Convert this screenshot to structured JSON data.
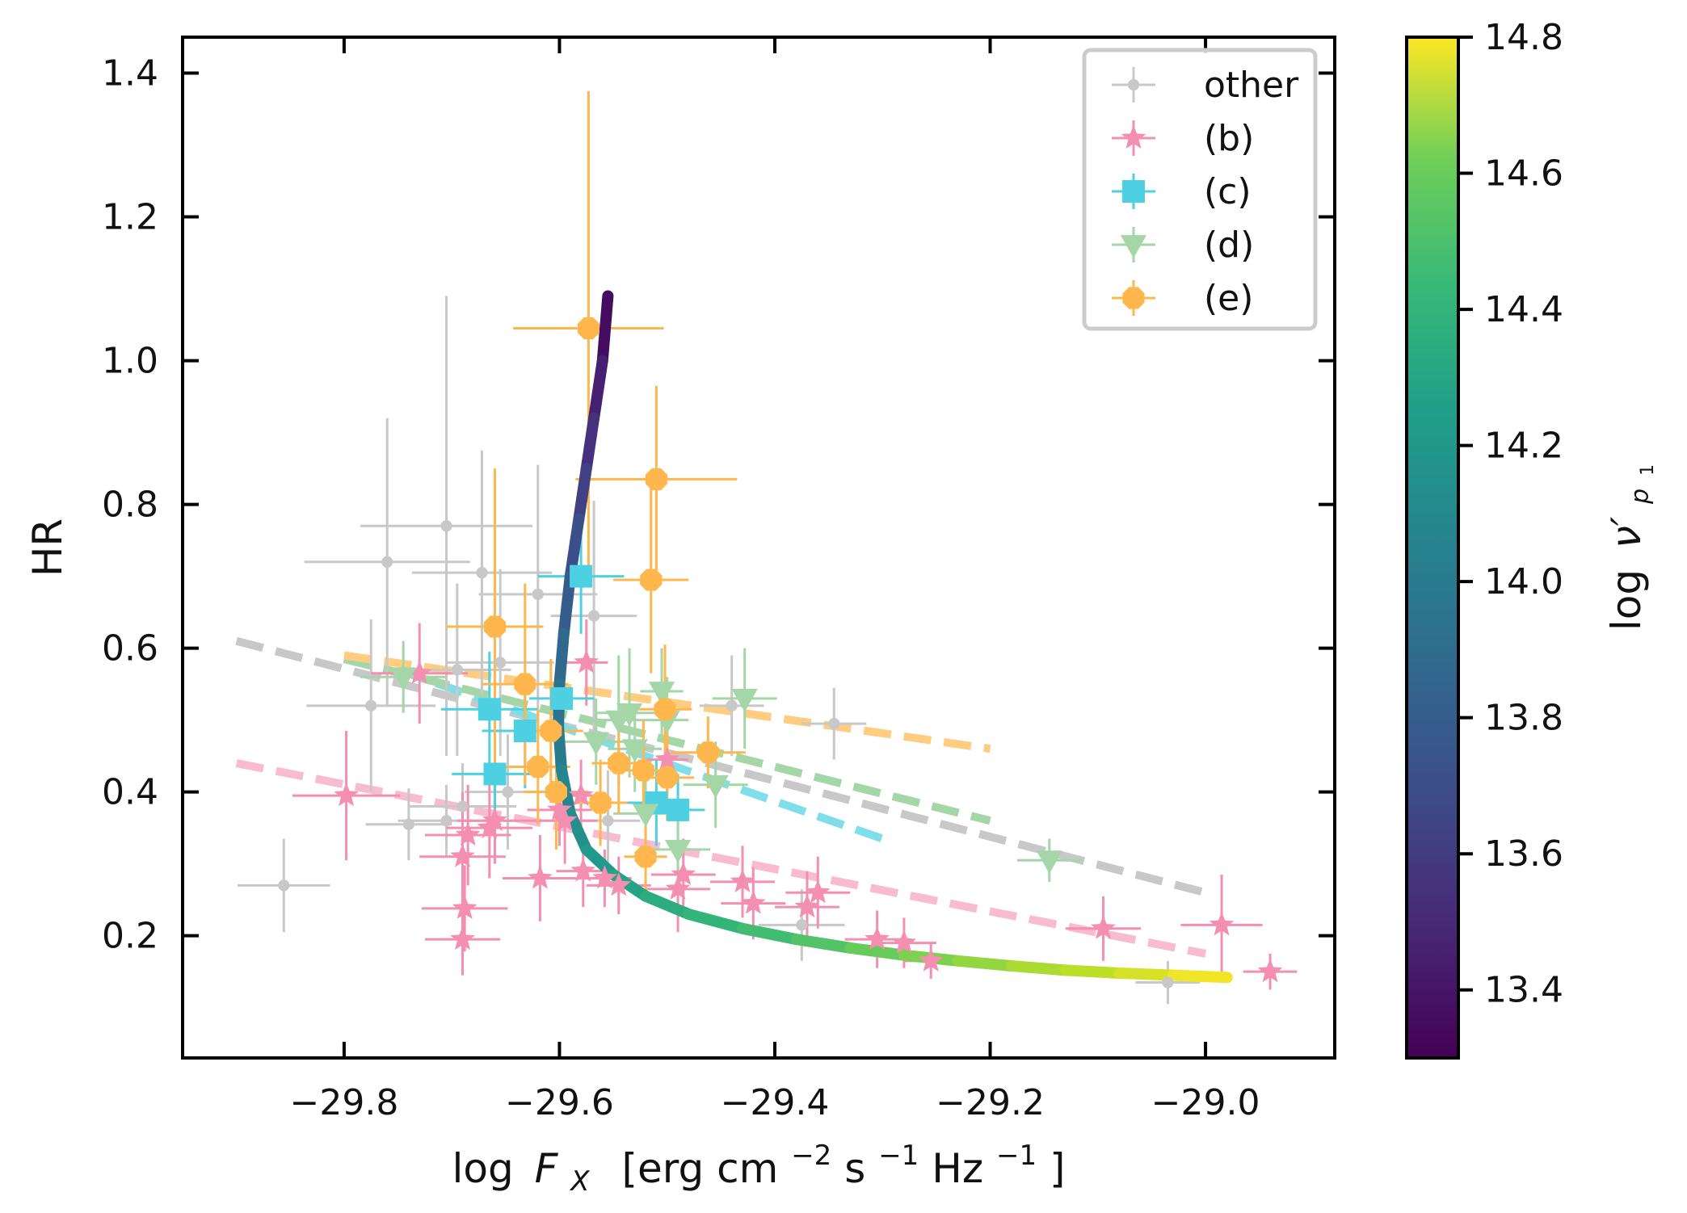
{
  "chart_data": {
    "type": "scatter",
    "title": "",
    "xlabel_parts": [
      "log",
      "F",
      "X",
      "[erg cm",
      "−2",
      " s",
      "−1",
      " Hz",
      "−1",
      "]"
    ],
    "ylabel": "HR",
    "xlim": [
      -29.95,
      -28.88
    ],
    "ylim": [
      0.03,
      1.45
    ],
    "xticks": [
      -29.8,
      -29.6,
      -29.4,
      -29.2,
      -29.0
    ],
    "xtick_labels": [
      "−29.8",
      "−29.6",
      "−29.4",
      "−29.2",
      "−29.0"
    ],
    "yticks": [
      0.2,
      0.4,
      0.6,
      0.8,
      1.0,
      1.2,
      1.4
    ],
    "ytick_labels": [
      "0.2",
      "0.4",
      "0.6",
      "0.8",
      "1.0",
      "1.2",
      "1.4"
    ],
    "legend_position": "top-right",
    "colorbar": {
      "label_parts": [
        "log",
        "ν′",
        "p",
        "1"
      ],
      "range": [
        13.3,
        14.8
      ],
      "ticks": [
        13.4,
        13.6,
        13.8,
        14.0,
        14.2,
        14.4,
        14.6,
        14.8
      ],
      "tick_labels": [
        "13.4",
        "13.6",
        "13.8",
        "14.0",
        "14.2",
        "14.4",
        "14.6",
        "14.8"
      ],
      "colormap": "viridis"
    },
    "series": [
      {
        "name": "other",
        "marker": "circle",
        "color": "#c8c8c8",
        "points": [
          {
            "x": -29.856,
            "y": 0.27,
            "xe": 0.043,
            "ye": 0.065
          },
          {
            "x": -29.775,
            "y": 0.52,
            "xe": 0.06,
            "ye": 0.12
          },
          {
            "x": -29.76,
            "y": 0.72,
            "xe": 0.077,
            "ye": 0.2
          },
          {
            "x": -29.74,
            "y": 0.355,
            "xe": 0.04,
            "ye": 0.05
          },
          {
            "x": -29.705,
            "y": 0.77,
            "xe": 0.08,
            "ye": 0.32
          },
          {
            "x": -29.705,
            "y": 0.36,
            "xe": 0.045,
            "ye": 0.05
          },
          {
            "x": -29.695,
            "y": 0.57,
            "xe": 0.05,
            "ye": 0.12
          },
          {
            "x": -29.69,
            "y": 0.38,
            "xe": 0.05,
            "ye": 0.06
          },
          {
            "x": -29.672,
            "y": 0.705,
            "xe": 0.065,
            "ye": 0.17
          },
          {
            "x": -29.655,
            "y": 0.58,
            "xe": 0.05,
            "ye": 0.13
          },
          {
            "x": -29.648,
            "y": 0.4,
            "xe": 0.04,
            "ye": 0.08
          },
          {
            "x": -29.62,
            "y": 0.675,
            "xe": 0.055,
            "ye": 0.18
          },
          {
            "x": -29.568,
            "y": 0.645,
            "xe": 0.04,
            "ye": 0.16
          },
          {
            "x": -29.555,
            "y": 0.36,
            "xe": 0.03,
            "ye": 0.07
          },
          {
            "x": -29.44,
            "y": 0.52,
            "xe": 0.03,
            "ye": 0.07
          },
          {
            "x": -29.375,
            "y": 0.215,
            "xe": 0.04,
            "ye": 0.05
          },
          {
            "x": -29.345,
            "y": 0.495,
            "xe": 0.03,
            "ye": 0.05
          },
          {
            "x": -29.035,
            "y": 0.135,
            "xe": 0.03,
            "ye": 0.03
          }
        ]
      },
      {
        "name": "(b)",
        "marker": "star",
        "color": "#f48fb1",
        "points": [
          {
            "x": -29.798,
            "y": 0.395,
            "xe": 0.05,
            "ye": 0.09
          },
          {
            "x": -29.73,
            "y": 0.565,
            "xe": 0.045,
            "ye": 0.07
          },
          {
            "x": -29.69,
            "y": 0.31,
            "xe": 0.04,
            "ye": 0.09
          },
          {
            "x": -29.688,
            "y": 0.238,
            "xe": 0.04,
            "ye": 0.06
          },
          {
            "x": -29.69,
            "y": 0.195,
            "xe": 0.035,
            "ye": 0.05
          },
          {
            "x": -29.685,
            "y": 0.34,
            "xe": 0.04,
            "ye": 0.07
          },
          {
            "x": -29.665,
            "y": 0.35,
            "xe": 0.04,
            "ye": 0.07
          },
          {
            "x": -29.66,
            "y": 0.36,
            "xe": 0.035,
            "ye": 0.06
          },
          {
            "x": -29.618,
            "y": 0.28,
            "xe": 0.035,
            "ye": 0.06
          },
          {
            "x": -29.6,
            "y": 0.375,
            "xe": 0.03,
            "ye": 0.05
          },
          {
            "x": -29.595,
            "y": 0.36,
            "xe": 0.03,
            "ye": 0.06
          },
          {
            "x": -29.58,
            "y": 0.395,
            "xe": 0.025,
            "ye": 0.05
          },
          {
            "x": -29.578,
            "y": 0.29,
            "xe": 0.025,
            "ye": 0.05
          },
          {
            "x": -29.575,
            "y": 0.58,
            "xe": 0.02,
            "ye": 0.06
          },
          {
            "x": -29.558,
            "y": 0.28,
            "xe": 0.025,
            "ye": 0.04
          },
          {
            "x": -29.545,
            "y": 0.27,
            "xe": 0.03,
            "ye": 0.04
          },
          {
            "x": -29.5,
            "y": 0.445,
            "xe": 0.02,
            "ye": 0.05
          },
          {
            "x": -29.49,
            "y": 0.265,
            "xe": 0.03,
            "ye": 0.06
          },
          {
            "x": -29.485,
            "y": 0.285,
            "xe": 0.03,
            "ye": 0.05
          },
          {
            "x": -29.43,
            "y": 0.275,
            "xe": 0.03,
            "ye": 0.05
          },
          {
            "x": -29.42,
            "y": 0.245,
            "xe": 0.03,
            "ye": 0.05
          },
          {
            "x": -29.37,
            "y": 0.24,
            "xe": 0.03,
            "ye": 0.05
          },
          {
            "x": -29.36,
            "y": 0.26,
            "xe": 0.03,
            "ye": 0.05
          },
          {
            "x": -29.305,
            "y": 0.195,
            "xe": 0.03,
            "ye": 0.04
          },
          {
            "x": -29.28,
            "y": 0.19,
            "xe": 0.03,
            "ye": 0.035
          },
          {
            "x": -29.255,
            "y": 0.165,
            "xe": 0.025,
            "ye": 0.025
          },
          {
            "x": -29.095,
            "y": 0.21,
            "xe": 0.035,
            "ye": 0.045
          },
          {
            "x": -28.985,
            "y": 0.215,
            "xe": 0.038,
            "ye": 0.07
          },
          {
            "x": -28.94,
            "y": 0.15,
            "xe": 0.025,
            "ye": 0.025
          }
        ]
      },
      {
        "name": "(c)",
        "marker": "square",
        "color": "#4dd0e1",
        "points": [
          {
            "x": -29.665,
            "y": 0.515,
            "xe": 0.045,
            "ye": 0.08
          },
          {
            "x": -29.66,
            "y": 0.425,
            "xe": 0.04,
            "ye": 0.07
          },
          {
            "x": -29.632,
            "y": 0.485,
            "xe": 0.04,
            "ye": 0.08
          },
          {
            "x": -29.598,
            "y": 0.53,
            "xe": 0.03,
            "ye": 0.08
          },
          {
            "x": -29.58,
            "y": 0.7,
            "xe": 0.04,
            "ye": 0.08
          },
          {
            "x": -29.51,
            "y": 0.385,
            "xe": 0.03,
            "ye": 0.06
          },
          {
            "x": -29.49,
            "y": 0.375,
            "xe": 0.025,
            "ye": 0.05
          }
        ]
      },
      {
        "name": "(d)",
        "marker": "triangle-down",
        "color": "#a5d6a7",
        "points": [
          {
            "x": -29.745,
            "y": 0.56,
            "xe": 0.04,
            "ye": 0.05
          },
          {
            "x": -29.566,
            "y": 0.47,
            "xe": 0.03,
            "ye": 0.06
          },
          {
            "x": -29.545,
            "y": 0.5,
            "xe": 0.03,
            "ye": 0.09
          },
          {
            "x": -29.535,
            "y": 0.51,
            "xe": 0.03,
            "ye": 0.09
          },
          {
            "x": -29.53,
            "y": 0.46,
            "xe": 0.025,
            "ye": 0.06
          },
          {
            "x": -29.52,
            "y": 0.37,
            "xe": 0.03,
            "ye": 0.07
          },
          {
            "x": -29.505,
            "y": 0.54,
            "xe": 0.02,
            "ye": 0.06
          },
          {
            "x": -29.5,
            "y": 0.5,
            "xe": 0.02,
            "ye": 0.06
          },
          {
            "x": -29.49,
            "y": 0.32,
            "xe": 0.03,
            "ye": 0.06
          },
          {
            "x": -29.455,
            "y": 0.41,
            "xe": 0.03,
            "ye": 0.06
          },
          {
            "x": -29.428,
            "y": 0.53,
            "xe": 0.03,
            "ye": 0.07
          },
          {
            "x": -29.145,
            "y": 0.305,
            "xe": 0.03,
            "ye": 0.03
          }
        ]
      },
      {
        "name": "(e)",
        "marker": "octagon",
        "color": "#ffb74d",
        "points": [
          {
            "x": -29.573,
            "y": 1.045,
            "xe": 0.07,
            "ye": 0.33
          },
          {
            "x": -29.51,
            "y": 0.835,
            "xe": 0.075,
            "ye": 0.13
          },
          {
            "x": -29.515,
            "y": 0.695,
            "xe": 0.035,
            "ye": 0.13
          },
          {
            "x": -29.66,
            "y": 0.63,
            "xe": 0.045,
            "ye": 0.22
          },
          {
            "x": -29.632,
            "y": 0.55,
            "xe": 0.04,
            "ye": 0.14
          },
          {
            "x": -29.608,
            "y": 0.485,
            "xe": 0.03,
            "ye": 0.1
          },
          {
            "x": -29.62,
            "y": 0.435,
            "xe": 0.03,
            "ye": 0.08
          },
          {
            "x": -29.603,
            "y": 0.4,
            "xe": 0.03,
            "ye": 0.08
          },
          {
            "x": -29.562,
            "y": 0.385,
            "xe": 0.025,
            "ye": 0.06
          },
          {
            "x": -29.545,
            "y": 0.44,
            "xe": 0.025,
            "ye": 0.07
          },
          {
            "x": -29.522,
            "y": 0.43,
            "xe": 0.025,
            "ye": 0.07
          },
          {
            "x": -29.502,
            "y": 0.515,
            "xe": 0.025,
            "ye": 0.09
          },
          {
            "x": -29.5,
            "y": 0.42,
            "xe": 0.025,
            "ye": 0.06
          },
          {
            "x": -29.52,
            "y": 0.31,
            "xe": 0.02,
            "ye": 0.06
          },
          {
            "x": -29.462,
            "y": 0.455,
            "xe": 0.035,
            "ye": 0.05
          }
        ]
      }
    ],
    "trend_lines": [
      {
        "name": "other-fit",
        "color": "#c8c8c8",
        "x": [
          -29.9,
          -29.0
        ],
        "y": [
          0.61,
          0.26
        ]
      },
      {
        "name": "(b)-fit",
        "color": "#f8bbd0",
        "x": [
          -29.9,
          -29.0
        ],
        "y": [
          0.44,
          0.175
        ]
      },
      {
        "name": "(c)-fit",
        "color": "#80deea",
        "x": [
          -29.75,
          -29.3
        ],
        "y": [
          0.57,
          0.335
        ]
      },
      {
        "name": "(d)-fit",
        "color": "#a5d6a7",
        "x": [
          -29.8,
          -29.2
        ],
        "y": [
          0.585,
          0.36
        ]
      },
      {
        "name": "(e)-fit",
        "color": "#ffcc80",
        "x": [
          -29.8,
          -29.2
        ],
        "y": [
          0.59,
          0.46
        ]
      }
    ],
    "model_curve": {
      "name": "model-track",
      "x": [
        -29.555,
        -29.56,
        -29.568,
        -29.575,
        -29.582,
        -29.59,
        -29.596,
        -29.6,
        -29.601,
        -29.598,
        -29.59,
        -29.575,
        -29.55,
        -29.52,
        -29.48,
        -29.43,
        -29.38,
        -29.33,
        -29.28,
        -29.23,
        -29.18,
        -29.13,
        -29.08,
        -29.03,
        -28.98
      ],
      "y": [
        1.09,
        1.0,
        0.92,
        0.85,
        0.78,
        0.7,
        0.62,
        0.55,
        0.49,
        0.43,
        0.37,
        0.32,
        0.285,
        0.255,
        0.23,
        0.21,
        0.195,
        0.183,
        0.173,
        0.165,
        0.158,
        0.152,
        0.148,
        0.145,
        0.142
      ],
      "color_value": [
        13.3,
        13.4,
        13.47,
        13.55,
        13.62,
        13.7,
        13.77,
        13.84,
        13.9,
        13.96,
        14.02,
        14.08,
        14.14,
        14.2,
        14.26,
        14.31,
        14.36,
        14.42,
        14.47,
        14.53,
        14.58,
        14.63,
        14.68,
        14.74,
        14.8
      ]
    }
  }
}
